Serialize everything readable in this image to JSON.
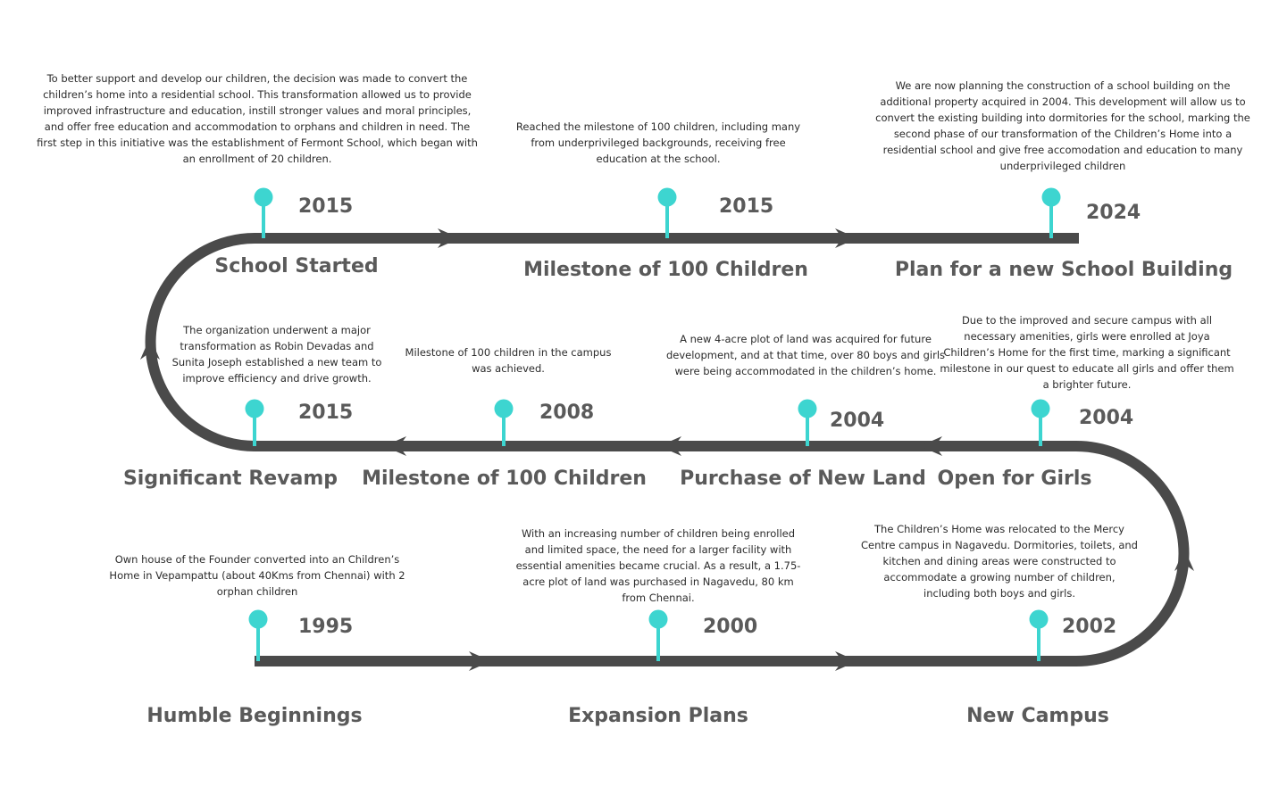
{
  "milestones": [
    {
      "year": "1995",
      "title": "Humble Beginnings",
      "description": "Own house of the Founder converted into an Children’s Home in Vepampattu (about 40Kms from Chennai) with 2 orphan children"
    },
    {
      "year": "2000",
      "title": "Expansion Plans",
      "description": "With an increasing number of children being enrolled and limited space, the need for a larger facility with essential amenities became crucial. As a result, a 1.75-acre plot of land was purchased in Nagavedu, 80 km from Chennai."
    },
    {
      "year": "2002",
      "title": "New Campus",
      "description": "The Children’s Home was relocated to the Mercy Centre campus in Nagavedu. Dormitories, toilets, and kitchen and dining areas were constructed to accommodate a growing number of children, including both boys and girls."
    },
    {
      "year": "2004",
      "title": "Open for Girls",
      "description": "Due to the improved and secure campus with all necessary amenities, girls were enrolled at Joya Children’s Home for the first time, marking a significant milestone in our quest to educate all girls and offer them a brighter future."
    },
    {
      "year": "2004",
      "title": "Purchase of New Land",
      "description": "A new 4-acre plot of land was acquired for future development, and at that time, over 80 boys and girls were being accommodated in the children’s home."
    },
    {
      "year": "2008",
      "title": "Milestone of 100 Children",
      "description": "Milestone of 100 children in the campus was achieved."
    },
    {
      "year": "2015",
      "title": "Significant Revamp",
      "description": "The organization underwent a major transformation as Robin Devadas and Sunita Joseph established a new team to improve efficiency and drive growth."
    },
    {
      "year": "2015",
      "title": "School Started",
      "description": "To better support and develop our children, the decision was made to convert the children’s home into a residential school. This transformation allowed us to provide improved infrastructure and education, instill stronger values and moral principles, and offer free education and accommodation to orphans and children in need. The first step in this initiative was the establishment of Fermont School, which began with an enrollment of 20 children."
    },
    {
      "year": "2015",
      "title": "Milestone of 100 Children",
      "description": "Reached the milestone of 100 children, including many from underprivileged backgrounds, receiving free education at the school."
    },
    {
      "year": "2024",
      "title": "Plan for a new School Building",
      "description": "We are now planning the construction of a school building on the additional property acquired in 2004. This development will allow us to convert the existing building into dormitories for the school, marking the second phase of our transformation of the Children’s Home into a residential school and give free accomodation and education to many underprivileged children"
    }
  ],
  "colors": {
    "track": "#4a4a4a",
    "pin": "#3dd5d0",
    "heading": "#5a5a5a",
    "body_text": "#2b2b2b"
  }
}
